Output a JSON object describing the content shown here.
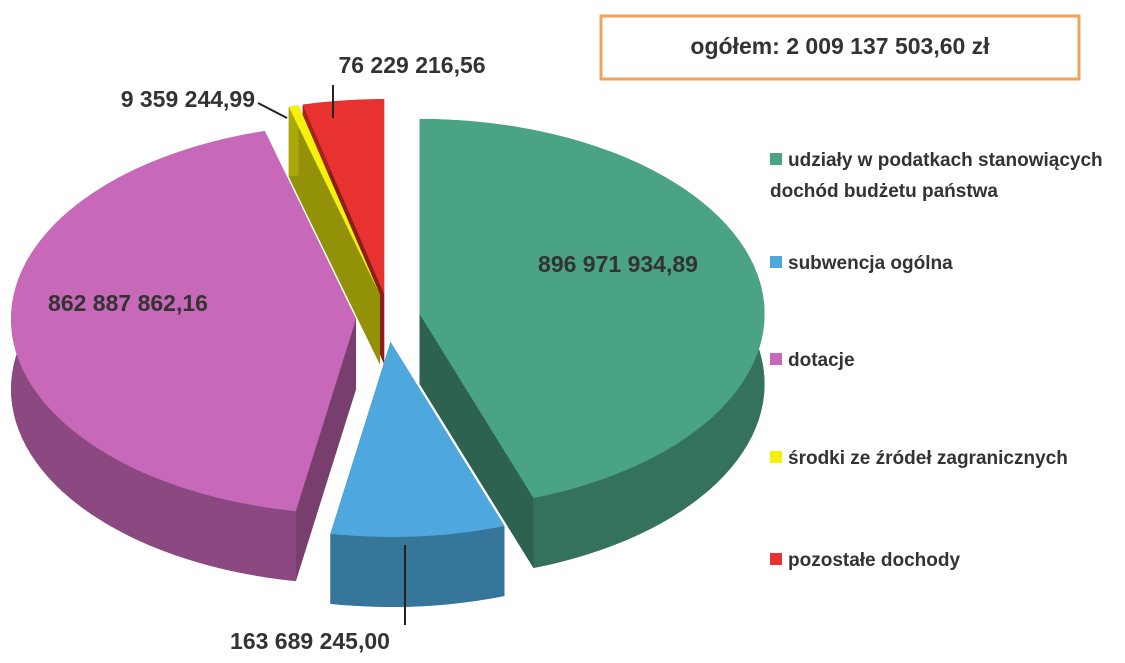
{
  "chart_data": {
    "type": "pie",
    "annotation": "ogółem: 2 009 137 503,60 zł",
    "categories": [
      "udziały w podatkach stanowiących dochód budżetu państwa",
      "subwencja ogólna",
      "dotacje",
      "środki ze źródeł zagranicznych",
      "pozostałe dochody"
    ],
    "values": [
      896971934.89,
      163689245.0,
      862887862.16,
      9359244.99,
      76229216.56
    ],
    "value_labels": [
      "896 971 934,89",
      "163 689 245,00",
      "862 887 862,16",
      "9 359 244,99",
      "76 229 216,56"
    ],
    "colors": [
      "#4aa383",
      "#4ea8de",
      "#c868b8",
      "#f4f20c",
      "#e8322f"
    ],
    "legend": "right"
  }
}
